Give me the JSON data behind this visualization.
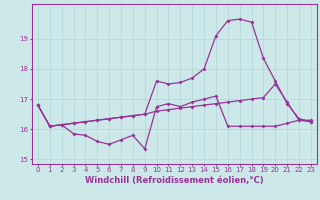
{
  "xlabel": "Windchill (Refroidissement éolien,°C)",
  "x": [
    0,
    1,
    2,
    3,
    4,
    5,
    6,
    7,
    8,
    9,
    10,
    11,
    12,
    13,
    14,
    15,
    16,
    17,
    18,
    19,
    20,
    21,
    22,
    23
  ],
  "line1": [
    16.8,
    16.1,
    16.15,
    15.85,
    15.8,
    15.6,
    15.5,
    15.65,
    15.8,
    15.35,
    16.75,
    16.85,
    16.75,
    16.9,
    17.0,
    17.1,
    16.1,
    16.1,
    16.1,
    16.1,
    16.1,
    16.2,
    16.3,
    16.3
  ],
  "line2": [
    16.8,
    16.1,
    16.15,
    16.2,
    16.25,
    16.3,
    16.35,
    16.4,
    16.45,
    16.5,
    16.6,
    16.65,
    16.7,
    16.75,
    16.8,
    16.85,
    16.9,
    16.95,
    17.0,
    17.05,
    17.5,
    16.9,
    16.3,
    16.25
  ],
  "line3": [
    16.8,
    16.1,
    16.15,
    16.2,
    16.25,
    16.3,
    16.35,
    16.4,
    16.45,
    16.5,
    17.6,
    17.5,
    17.55,
    17.7,
    18.0,
    19.1,
    19.6,
    19.65,
    19.55,
    18.35,
    17.6,
    16.85,
    16.35,
    16.25
  ],
  "ylim": [
    14.85,
    20.15
  ],
  "xlim": [
    -0.5,
    23.5
  ],
  "yticks": [
    15,
    16,
    17,
    18,
    19
  ],
  "xticks": [
    0,
    1,
    2,
    3,
    4,
    5,
    6,
    7,
    8,
    9,
    10,
    11,
    12,
    13,
    14,
    15,
    16,
    17,
    18,
    19,
    20,
    21,
    22,
    23
  ],
  "line_color": "#993399",
  "bg_color": "#cce8e8",
  "grid_color": "#b0d8d8",
  "marker": "D",
  "markersize": 2.0,
  "linewidth": 0.9,
  "tick_fontsize": 5.0,
  "xlabel_fontsize": 6.0
}
